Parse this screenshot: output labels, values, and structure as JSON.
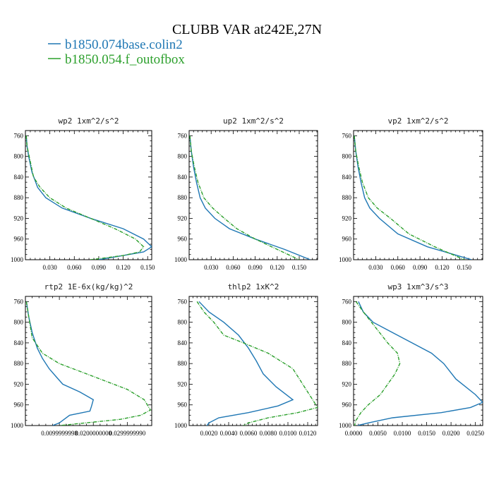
{
  "figure": {
    "title": "CLUBB VAR at242E,27N",
    "legend": [
      {
        "label": "b1850.074base.colin2",
        "color": "#1f77b4"
      },
      {
        "label": "b1850.054.f_outofbox",
        "color": "#2ca02c"
      }
    ]
  },
  "chart_data": [
    {
      "type": "line",
      "title": "wp2   1xm^2/s^2",
      "ylim": [
        1000,
        750
      ],
      "yticks": [
        "760",
        "800",
        "840",
        "880",
        "920",
        "960",
        "1000"
      ],
      "xlim": [
        0,
        0.155
      ],
      "xticks": [
        "0.030",
        "0.060",
        "0.090",
        "0.120",
        "0.150"
      ],
      "xtick_values": [
        0.03,
        0.06,
        0.09,
        0.12,
        0.15
      ],
      "series": [
        {
          "name": "b1850.074base.colin2",
          "color": "#1f77b4",
          "x": [
            0.001,
            0.002,
            0.004,
            0.008,
            0.015,
            0.025,
            0.045,
            0.08,
            0.12,
            0.145,
            0.155,
            0.145,
            0.12,
            0.09
          ],
          "y": [
            760,
            780,
            800,
            830,
            860,
            880,
            900,
            920,
            940,
            960,
            975,
            985,
            992,
            1000
          ]
        },
        {
          "name": "b1850.054.f_outofbox",
          "color": "#2ca02c",
          "dashed": true,
          "x": [
            0.001,
            0.002,
            0.006,
            0.01,
            0.018,
            0.03,
            0.05,
            0.08,
            0.11,
            0.135,
            0.145,
            0.14,
            0.12,
            0.08
          ],
          "y": [
            760,
            780,
            810,
            840,
            860,
            880,
            900,
            920,
            940,
            960,
            975,
            985,
            992,
            1000
          ]
        }
      ]
    },
    {
      "type": "line",
      "title": "up2   1xm^2/s^2",
      "ylim": [
        1000,
        750
      ],
      "yticks": [
        "760",
        "800",
        "840",
        "880",
        "920",
        "960",
        "1000"
      ],
      "xlim": [
        0,
        0.175
      ],
      "xticks": [
        "0.030",
        "0.060",
        "0.090",
        "0.120",
        "0.150"
      ],
      "xtick_values": [
        0.03,
        0.06,
        0.09,
        0.12,
        0.15
      ],
      "series": [
        {
          "name": "b1850.074base.colin2",
          "color": "#1f77b4",
          "x": [
            0.001,
            0.003,
            0.006,
            0.01,
            0.015,
            0.022,
            0.035,
            0.055,
            0.09,
            0.13,
            0.165
          ],
          "y": [
            760,
            790,
            820,
            850,
            880,
            900,
            920,
            940,
            960,
            980,
            1000
          ]
        },
        {
          "name": "b1850.054.f_outofbox",
          "color": "#2ca02c",
          "dashed": true,
          "x": [
            0.001,
            0.003,
            0.007,
            0.012,
            0.02,
            0.032,
            0.048,
            0.065,
            0.09,
            0.12,
            0.15
          ],
          "y": [
            760,
            790,
            820,
            850,
            880,
            900,
            920,
            940,
            960,
            980,
            1000
          ]
        }
      ]
    },
    {
      "type": "line",
      "title": "vp2   1xm^2/s^2",
      "ylim": [
        1000,
        750
      ],
      "yticks": [
        "760",
        "800",
        "840",
        "880",
        "920",
        "960",
        "1000"
      ],
      "xlim": [
        0,
        0.175
      ],
      "xticks": [
        "0.030",
        "0.060",
        "0.090",
        "0.120",
        "0.150"
      ],
      "xtick_values": [
        0.03,
        0.06,
        0.09,
        0.12,
        0.15
      ],
      "series": [
        {
          "name": "b1850.074base.colin2",
          "color": "#1f77b4",
          "x": [
            0.001,
            0.003,
            0.006,
            0.01,
            0.015,
            0.022,
            0.035,
            0.06,
            0.1,
            0.16
          ],
          "y": [
            760,
            790,
            820,
            850,
            880,
            900,
            920,
            950,
            975,
            1000
          ]
        },
        {
          "name": "b1850.054.f_outofbox",
          "color": "#2ca02c",
          "dashed": true,
          "x": [
            0.001,
            0.003,
            0.007,
            0.012,
            0.02,
            0.032,
            0.05,
            0.075,
            0.11,
            0.15
          ],
          "y": [
            760,
            790,
            820,
            850,
            880,
            900,
            920,
            950,
            975,
            1000
          ]
        }
      ]
    },
    {
      "type": "line",
      "title": "rtp2   1E-6x(kg/kg)^2",
      "ylim": [
        1000,
        750
      ],
      "yticks": [
        "760",
        "800",
        "840",
        "880",
        "920",
        "960",
        "1000"
      ],
      "xlim": [
        0,
        0.0372
      ],
      "xticks": [
        "0.0099999998",
        "0.0200000000",
        "0.0299999990"
      ],
      "xtick_values": [
        0.0099999998,
        0.02,
        0.029999999
      ],
      "series": [
        {
          "name": "b1850.074base.colin2",
          "color": "#1f77b4",
          "x": [
            0.0003,
            0.001,
            0.002,
            0.0035,
            0.005,
            0.007,
            0.009,
            0.011,
            0.016,
            0.02,
            0.0195,
            0.019,
            0.013,
            0.011,
            0.01,
            0.008
          ],
          "y": [
            760,
            790,
            820,
            850,
            870,
            890,
            905,
            920,
            935,
            950,
            962,
            972,
            980,
            990,
            995,
            1000
          ]
        },
        {
          "name": "b1850.054.f_outofbox",
          "color": "#2ca02c",
          "dashed": true,
          "x": [
            0.0003,
            0.001,
            0.002,
            0.005,
            0.01,
            0.016,
            0.022,
            0.03,
            0.035,
            0.0368,
            0.034,
            0.028,
            0.016,
            0.01
          ],
          "y": [
            760,
            790,
            830,
            860,
            880,
            895,
            910,
            930,
            950,
            970,
            980,
            988,
            996,
            1000
          ]
        }
      ]
    },
    {
      "type": "line",
      "title": "thlp2   1xK^2",
      "ylim": [
        1000,
        750
      ],
      "yticks": [
        "760",
        "800",
        "840",
        "880",
        "920",
        "960",
        "1000"
      ],
      "xlim": [
        0,
        0.013
      ],
      "xticks": [
        "0.0020",
        "0.0040",
        "0.0060",
        "0.0080",
        "0.0100",
        "0.0120"
      ],
      "xtick_values": [
        0.002,
        0.004,
        0.006,
        0.008,
        0.01,
        0.012
      ],
      "series": [
        {
          "name": "b1850.074base.colin2",
          "color": "#1f77b4",
          "x": [
            0.001,
            0.002,
            0.0035,
            0.005,
            0.006,
            0.0068,
            0.0075,
            0.0088,
            0.0105,
            0.009,
            0.006,
            0.003,
            0.002,
            0.0018,
            0.0022
          ],
          "y": [
            760,
            780,
            800,
            825,
            850,
            875,
            900,
            925,
            950,
            962,
            975,
            985,
            995,
            1000,
            1002
          ]
        },
        {
          "name": "b1850.054.f_outofbox",
          "color": "#2ca02c",
          "dashed": true,
          "x": [
            0.0008,
            0.0015,
            0.0025,
            0.0035,
            0.0055,
            0.008,
            0.0105,
            0.013,
            0.011,
            0.008,
            0.006,
            0.0055
          ],
          "y": [
            760,
            780,
            800,
            825,
            840,
            860,
            890,
            965,
            975,
            985,
            995,
            1000
          ]
        }
      ]
    },
    {
      "type": "line",
      "title": "wp3   1xm^3/s^3",
      "ylim": [
        1000,
        750
      ],
      "yticks": [
        "760",
        "800",
        "840",
        "880",
        "920",
        "960",
        "1000"
      ],
      "xlim": [
        0,
        0.0265
      ],
      "xticks": [
        "0.0000",
        "0.0050",
        "0.0100",
        "0.0150",
        "0.0200",
        "0.0250"
      ],
      "xtick_values": [
        0,
        0.005,
        0.01,
        0.015,
        0.02,
        0.025
      ],
      "series": [
        {
          "name": "b1850.074base.colin2",
          "color": "#1f77b4",
          "x": [
            0.001,
            0.002,
            0.004,
            0.008,
            0.012,
            0.016,
            0.0185,
            0.021,
            0.025,
            0.0265,
            0.024,
            0.018,
            0.008,
            0.003,
            0.0008
          ],
          "y": [
            760,
            780,
            800,
            820,
            840,
            860,
            880,
            910,
            940,
            955,
            965,
            975,
            985,
            995,
            1000
          ]
        },
        {
          "name": "b1850.054.f_outofbox",
          "color": "#2ca02c",
          "dashed": true,
          "x": [
            0.0005,
            0.002,
            0.0045,
            0.007,
            0.009,
            0.0095,
            0.0085,
            0.0055,
            0.003,
            0.0015,
            0.0005,
            0.0002
          ],
          "y": [
            760,
            780,
            810,
            840,
            860,
            880,
            900,
            940,
            960,
            975,
            990,
            1000
          ]
        }
      ]
    }
  ]
}
